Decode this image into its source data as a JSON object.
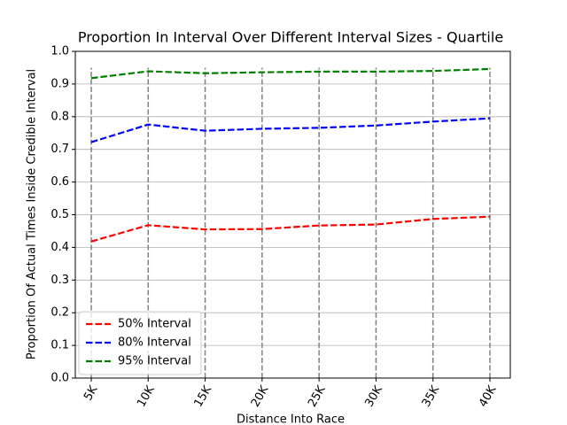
{
  "chart_data": {
    "type": "line",
    "title": "Proportion In Interval Over Different Interval Sizes - Quartile",
    "x_label": "Distance Into Race",
    "y_label": "Proportion Of Actual Times Inside Credible Interval",
    "categories": [
      "5K",
      "10K",
      "15K",
      "20K",
      "25K",
      "30K",
      "35K",
      "40K"
    ],
    "series": [
      {
        "name": "50% Interval",
        "color": "#ff0000",
        "values": [
          0.418,
          0.468,
          0.455,
          0.456,
          0.467,
          0.47,
          0.487,
          0.494
        ]
      },
      {
        "name": "80% Interval",
        "color": "#0000ff",
        "values": [
          0.722,
          0.776,
          0.757,
          0.763,
          0.766,
          0.773,
          0.785,
          0.795
        ]
      },
      {
        "name": "95% Interval",
        "color": "#008000",
        "values": [
          0.918,
          0.939,
          0.933,
          0.936,
          0.938,
          0.938,
          0.94,
          0.946
        ]
      }
    ],
    "vlines": {
      "color": "#808080",
      "ymin": 0,
      "ymax": 0.95
    },
    "ylim": [
      0,
      1
    ],
    "yticks": [
      {
        "value": 0,
        "label": "0.0"
      },
      0.1,
      0.2,
      0.3,
      0.4,
      0.5,
      0.6,
      0.7,
      0.8,
      0.9,
      {
        "value": 1,
        "label": "1.0"
      }
    ],
    "grid": "y",
    "legend": "lower left"
  }
}
